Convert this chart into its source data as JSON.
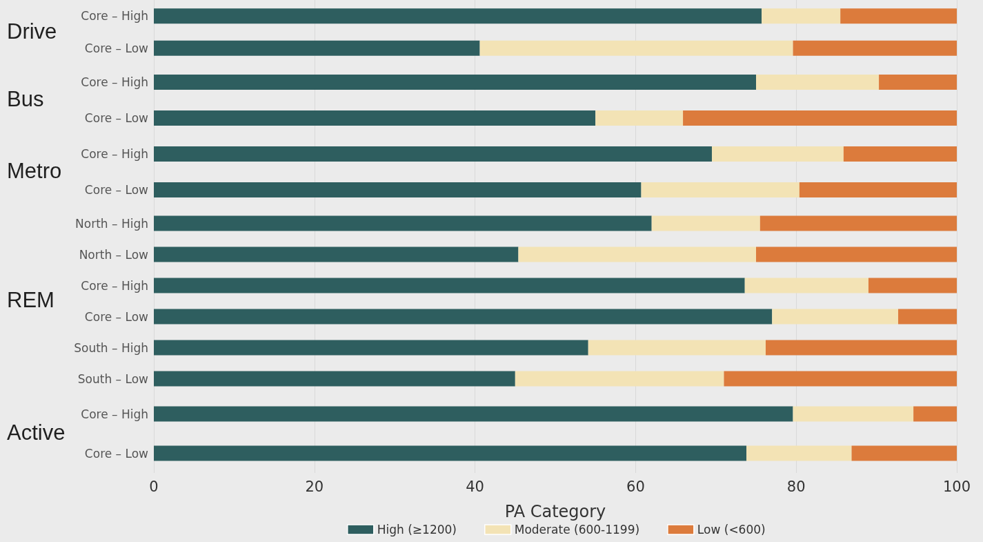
{
  "chart_data": [
    {
      "type": "bar",
      "orientation": "horizontal",
      "stacked": true,
      "title": "Drive",
      "categories": [
        "Core – High",
        "Core – Low"
      ],
      "series": [
        {
          "color": "#2e5e5f",
          "values": [
            75.7,
            40.6
          ]
        },
        {
          "color": "#f3e3b5",
          "values": [
            9.8,
            39.0
          ]
        },
        {
          "color": "#dc7b3c",
          "values": [
            14.5,
            20.4
          ]
        }
      ],
      "xlim": [
        0,
        100
      ],
      "xticks": [
        0,
        20,
        40,
        60,
        80,
        100
      ],
      "grid": "x",
      "tick_labels": "y"
    },
    {
      "type": "bar",
      "orientation": "horizontal",
      "stacked": true,
      "title": "Bus",
      "categories": [
        "Core – High",
        "Core – Low"
      ],
      "series": [
        {
          "color": "#2e5e5f",
          "values": [
            75.0,
            55.0
          ]
        },
        {
          "color": "#f3e3b5",
          "values": [
            15.3,
            10.9
          ]
        },
        {
          "color": "#dc7b3c",
          "values": [
            9.7,
            34.1
          ]
        }
      ],
      "xlim": [
        0,
        100
      ],
      "xticks": [
        0,
        20,
        40,
        60,
        80,
        100
      ],
      "grid": "x",
      "tick_labels": "y"
    },
    {
      "type": "bar",
      "orientation": "horizontal",
      "stacked": true,
      "title": "Metro",
      "categories": [
        "Core – High",
        "Core – Low"
      ],
      "series": [
        {
          "color": "#2e5e5f",
          "values": [
            69.5,
            60.7
          ]
        },
        {
          "color": "#f3e3b5",
          "values": [
            16.4,
            19.7
          ]
        },
        {
          "color": "#dc7b3c",
          "values": [
            14.1,
            19.6
          ]
        }
      ],
      "xlim": [
        0,
        100
      ],
      "xticks": [
        0,
        20,
        40,
        60,
        80,
        100
      ],
      "grid": "x",
      "tick_labels": "y"
    },
    {
      "type": "bar",
      "orientation": "horizontal",
      "stacked": true,
      "title": "REM",
      "categories": [
        "North – High",
        "North – Low",
        "Core – High",
        "Core – Low",
        "South – High",
        "South – Low"
      ],
      "series": [
        {
          "color": "#2e5e5f",
          "values": [
            62.0,
            45.4,
            73.6,
            77.0,
            54.1,
            45.0
          ]
        },
        {
          "color": "#f3e3b5",
          "values": [
            13.5,
            29.6,
            15.4,
            15.7,
            22.1,
            26.0
          ]
        },
        {
          "color": "#dc7b3c",
          "values": [
            24.5,
            25.0,
            11.0,
            7.3,
            23.8,
            29.0
          ]
        }
      ],
      "xlim": [
        0,
        100
      ],
      "xticks": [
        0,
        20,
        40,
        60,
        80,
        100
      ],
      "grid": "x",
      "tick_labels": "y"
    },
    {
      "type": "bar",
      "orientation": "horizontal",
      "stacked": true,
      "title": "Active",
      "xlabel": "PA Category",
      "categories": [
        "Core – High",
        "Core – Low"
      ],
      "series": [
        {
          "name": "High (≥1200)",
          "color": "#2e5e5f",
          "values": [
            79.6,
            73.8
          ]
        },
        {
          "name": "Moderate (600-1199)",
          "color": "#f3e3b5",
          "values": [
            15.0,
            13.1
          ]
        },
        {
          "name": "Low (<600)",
          "color": "#dc7b3c",
          "values": [
            5.4,
            13.1
          ]
        }
      ],
      "xlim": [
        0,
        100
      ],
      "xticks": [
        0,
        20,
        40,
        60,
        80,
        100
      ],
      "grid": "x",
      "legend": "bottom"
    }
  ]
}
